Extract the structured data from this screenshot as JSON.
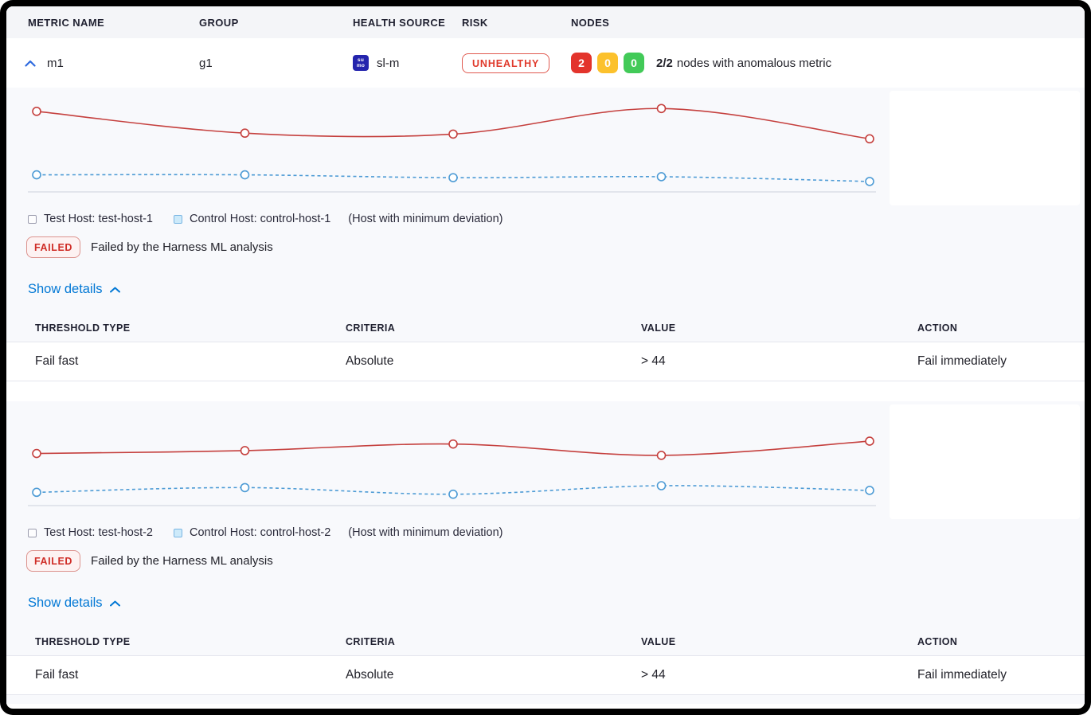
{
  "colors": {
    "accent_blue": "#0278d5",
    "risk_red": "#e03a2c",
    "node_red": "#e3342c",
    "node_yellow": "#fcc12c",
    "node_green": "#42ca58",
    "test_line_red": "#c5403e",
    "control_line_blue": "#4d9bd5",
    "section_bg": "#f8f9fc",
    "sumo_icon_bg": "#2424ad"
  },
  "table_header": {
    "metric_name": "METRIC NAME",
    "group": "GROUP",
    "health_source": "HEALTH SOURCE",
    "risk": "RISK",
    "nodes": "NODES"
  },
  "metric_row": {
    "metric_name": "m1",
    "group": "g1",
    "health_source": {
      "icon": "sumologic-icon",
      "icon_line1": "su",
      "icon_line2": "mo",
      "label": "sl-m"
    },
    "risk": "UNHEALTHY",
    "nodes": {
      "anomalous_count": "2",
      "warning_count": "0",
      "healthy_count": "0",
      "summary_count": "2/2",
      "summary_text": "nodes with anomalous metric"
    }
  },
  "sections": [
    {
      "legend": {
        "test_label": "Test Host: test-host-1",
        "control_label": "Control Host: control-host-1",
        "control_note": "(Host with minimum deviation)"
      },
      "status": {
        "badge": "FAILED",
        "message": "Failed by the Harness ML analysis"
      },
      "details_toggle": "Show details",
      "threshold_table": {
        "headers": [
          "THRESHOLD TYPE",
          "CRITERIA",
          "VALUE",
          "ACTION"
        ],
        "rows": [
          [
            "Fail fast",
            "Absolute",
            "> 44",
            "Fail immediately"
          ]
        ]
      }
    },
    {
      "legend": {
        "test_label": "Test Host: test-host-2",
        "control_label": "Control Host: control-host-2",
        "control_note": "(Host with minimum deviation)"
      },
      "status": {
        "badge": "FAILED",
        "message": "Failed by the Harness ML analysis"
      },
      "details_toggle": "Show details",
      "threshold_table": {
        "headers": [
          "THRESHOLD TYPE",
          "CRITERIA",
          "VALUE",
          "ACTION"
        ],
        "rows": [
          [
            "Fail fast",
            "Absolute",
            "> 44",
            "Fail immediately"
          ]
        ]
      }
    }
  ],
  "chart_data": [
    {
      "type": "line",
      "x": [
        1,
        2,
        3,
        4,
        5
      ],
      "ylim": [
        0,
        100
      ],
      "grid": false,
      "legend_position": "bottom",
      "series": [
        {
          "name": "Test Host: test-host-1",
          "color": "#c5403e",
          "dashed": false,
          "values": [
            85,
            62,
            61,
            88,
            56
          ]
        },
        {
          "name": "Control Host: control-host-1",
          "color": "#4d9bd5",
          "dashed": true,
          "values": [
            18,
            18,
            15,
            16,
            11
          ]
        }
      ]
    },
    {
      "type": "line",
      "x": [
        1,
        2,
        3,
        4,
        5
      ],
      "ylim": [
        0,
        100
      ],
      "grid": false,
      "legend_position": "bottom",
      "series": [
        {
          "name": "Test Host: test-host-2",
          "color": "#c5403e",
          "dashed": false,
          "values": [
            55,
            58,
            65,
            53,
            68
          ]
        },
        {
          "name": "Control Host: control-host-2",
          "color": "#4d9bd5",
          "dashed": true,
          "values": [
            14,
            19,
            12,
            21,
            16
          ]
        }
      ]
    }
  ]
}
